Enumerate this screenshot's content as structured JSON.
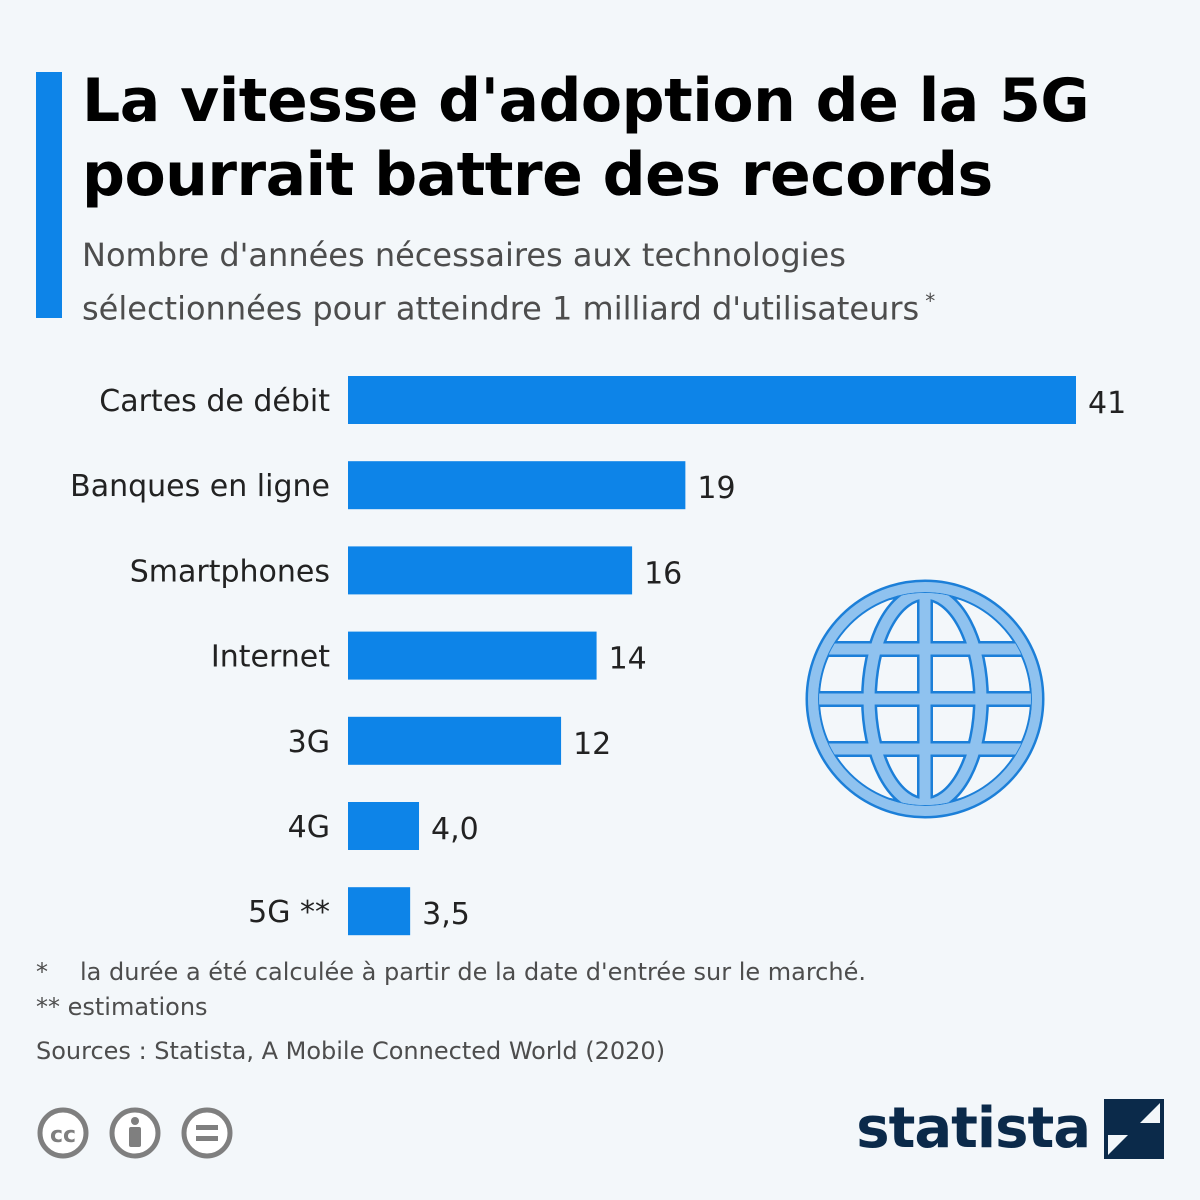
{
  "header": {
    "title": "La vitesse d'adoption de la 5G\npourrait battre des records",
    "subtitle": "Nombre d'années nécessaires aux technologies\nsélectionnées pour atteindre 1 milliard d'utilisateurs",
    "subtitle_mark": "*"
  },
  "chart_data": {
    "type": "bar",
    "orientation": "horizontal",
    "categories": [
      "Cartes de débit",
      "Banques en ligne",
      "Smartphones",
      "Internet",
      "3G",
      "4G",
      "5G **"
    ],
    "values": [
      41,
      19,
      16,
      14,
      12,
      4.0,
      3.5
    ],
    "value_labels": [
      "41",
      "19",
      "16",
      "14",
      "12",
      "4,0",
      "3,5"
    ],
    "bar_color": "#0d84e8",
    "grid": false,
    "legend": "none"
  },
  "footnotes": {
    "note1_mark": "*",
    "note1_text": "la durée a été calculée à partir de la date d'entrée sur le marché.",
    "note2": "** estimations",
    "sources": "Sources : Statista, A Mobile Connected World (2020)"
  },
  "license_icons": [
    "cc-icon",
    "attribution-icon",
    "no-derivatives-icon"
  ],
  "brand": {
    "name": "statista"
  },
  "colors": {
    "accent": "#0d84e8",
    "globe": "#8fc2ef",
    "brand": "#0b2a4a"
  }
}
